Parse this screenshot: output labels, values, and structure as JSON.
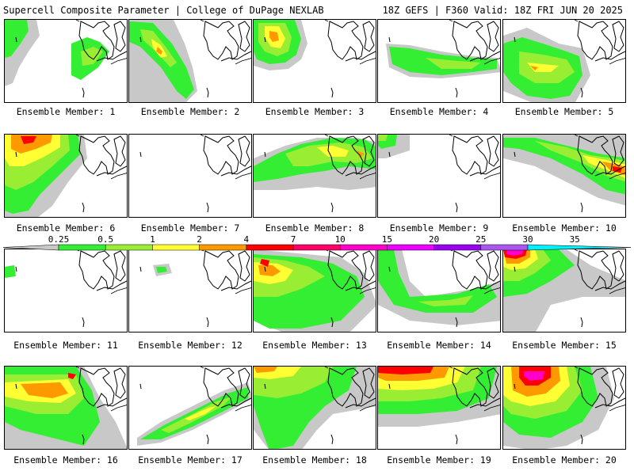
{
  "header": {
    "left": "Supercell Composite Parameter | College of DuPage NEXLAB",
    "right": "18Z GEFS | F360 Valid: 18Z FRI JUN 20 2025"
  },
  "panels": [
    {
      "label": "Ensemble Member: 1"
    },
    {
      "label": "Ensemble Member: 2"
    },
    {
      "label": "Ensemble Member: 3"
    },
    {
      "label": "Ensemble Member: 4"
    },
    {
      "label": "Ensemble Member: 5"
    },
    {
      "label": "Ensemble Member: 6"
    },
    {
      "label": "Ensemble Member: 7"
    },
    {
      "label": "Ensemble Member: 8"
    },
    {
      "label": "Ensemble Member: 9"
    },
    {
      "label": "Ensemble Member: 10"
    },
    {
      "label": "Ensemble Member: 11"
    },
    {
      "label": "Ensemble Member: 12"
    },
    {
      "label": "Ensemble Member: 13"
    },
    {
      "label": "Ensemble Member: 14"
    },
    {
      "label": "Ensemble Member: 15"
    },
    {
      "label": "Ensemble Member: 16"
    },
    {
      "label": "Ensemble Member: 17"
    },
    {
      "label": "Ensemble Member: 18"
    },
    {
      "label": "Ensemble Member: 19"
    },
    {
      "label": "Ensemble Member: 20"
    }
  ],
  "colorbar": {
    "levels": [
      "0.25",
      "0.5",
      "1",
      "2",
      "4",
      "7",
      "10",
      "15",
      "20",
      "25",
      "30",
      "35"
    ],
    "colors": [
      "#c8c8c8",
      "#33ee33",
      "#99ee33",
      "#ffff33",
      "#ff9900",
      "#ff0000",
      "#ff0066",
      "#ff00cc",
      "#ee00ff",
      "#9900ee",
      "#aa55ee",
      "#00eeff"
    ]
  }
}
